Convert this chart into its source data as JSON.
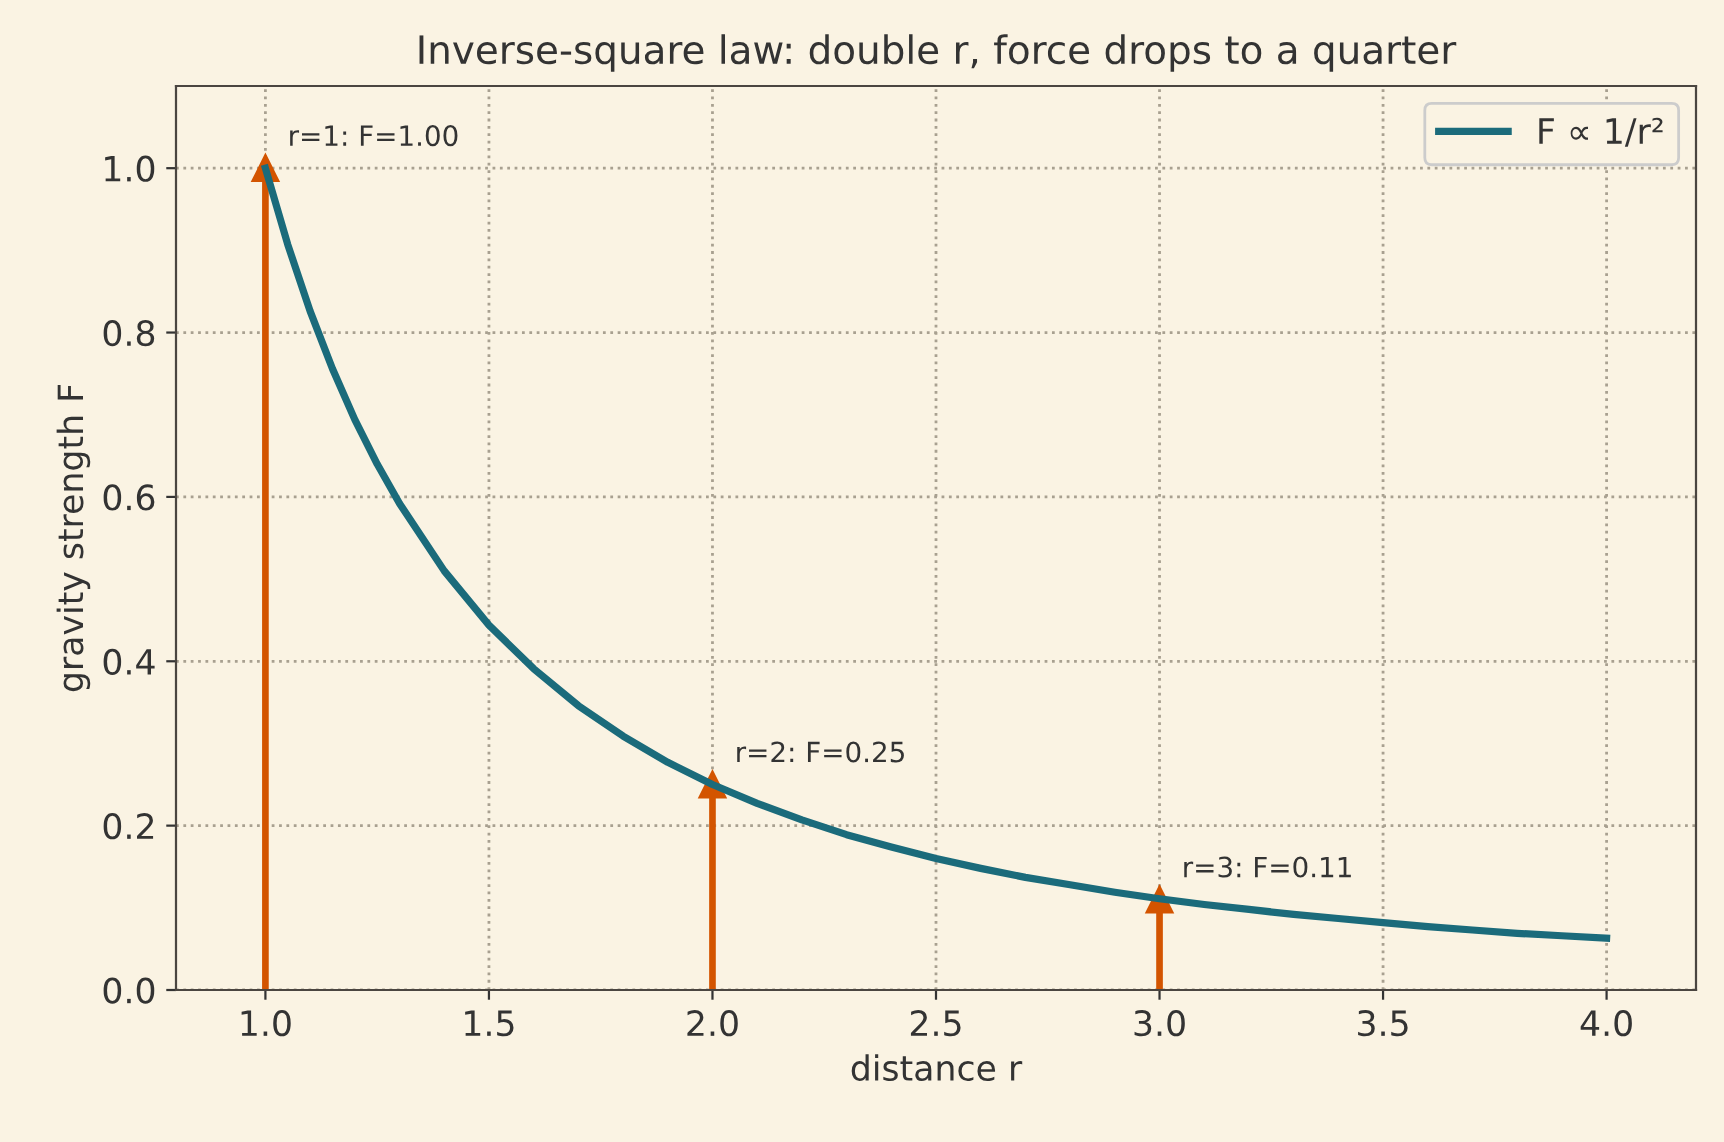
{
  "chart_data": {
    "type": "line",
    "title": "Inverse-square law: double r, force drops to a quarter",
    "xlabel": "distance r",
    "ylabel": "gravity strength F",
    "series": [
      {
        "name": "F ∝ 1/r²",
        "color": "#1b6b7b",
        "x": [
          1.0,
          1.05,
          1.1,
          1.15,
          1.2,
          1.25,
          1.3,
          1.4,
          1.5,
          1.6,
          1.7,
          1.8,
          1.9,
          2.0,
          2.1,
          2.2,
          2.3,
          2.4,
          2.5,
          2.6,
          2.7,
          2.8,
          2.9,
          3.0,
          3.1,
          3.2,
          3.3,
          3.4,
          3.5,
          3.6,
          3.7,
          3.8,
          3.9,
          4.0
        ],
        "values": [
          1.0,
          0.907,
          0.826,
          0.756,
          0.694,
          0.64,
          0.592,
          0.51,
          0.444,
          0.391,
          0.346,
          0.309,
          0.277,
          0.25,
          0.227,
          0.207,
          0.189,
          0.174,
          0.16,
          0.148,
          0.137,
          0.128,
          0.119,
          0.111,
          0.104,
          0.098,
          0.092,
          0.087,
          0.082,
          0.077,
          0.073,
          0.069,
          0.066,
          0.063
        ]
      },
      {
        "type": "lollipop",
        "color": "#d35400",
        "marker": "triangle",
        "x": [
          1.0,
          2.0,
          3.0
        ],
        "values": [
          1.0,
          0.25,
          0.11
        ]
      }
    ],
    "annotations": [
      {
        "text": "r=1: F=1.00",
        "x": 1.0,
        "y": 1.0
      },
      {
        "text": "r=2: F=0.25",
        "x": 2.0,
        "y": 0.25
      },
      {
        "text": "r=3: F=0.11",
        "x": 3.0,
        "y": 0.11
      }
    ],
    "xlim": [
      0.8,
      4.2
    ],
    "ylim": [
      0,
      1.1
    ],
    "xticks": [
      {
        "value": 1.0,
        "label": "1.0"
      },
      {
        "value": 1.5,
        "label": "1.5"
      },
      {
        "value": 2.0,
        "label": "2.0"
      },
      {
        "value": 2.5,
        "label": "2.5"
      },
      {
        "value": 3.0,
        "label": "3.0"
      },
      {
        "value": 3.5,
        "label": "3.5"
      },
      {
        "value": 4.0,
        "label": "4.0"
      }
    ],
    "yticks": [
      {
        "value": 0,
        "label": "0.0"
      },
      {
        "value": 0.2,
        "label": "0.2"
      },
      {
        "value": 0.4,
        "label": "0.4"
      },
      {
        "value": 0.6,
        "label": "0.6"
      },
      {
        "value": 0.8,
        "label": "0.8"
      },
      {
        "value": 1.0,
        "label": "1.0"
      }
    ],
    "grid": true,
    "legend": "top right",
    "line_style": "solid",
    "marker": "none"
  }
}
